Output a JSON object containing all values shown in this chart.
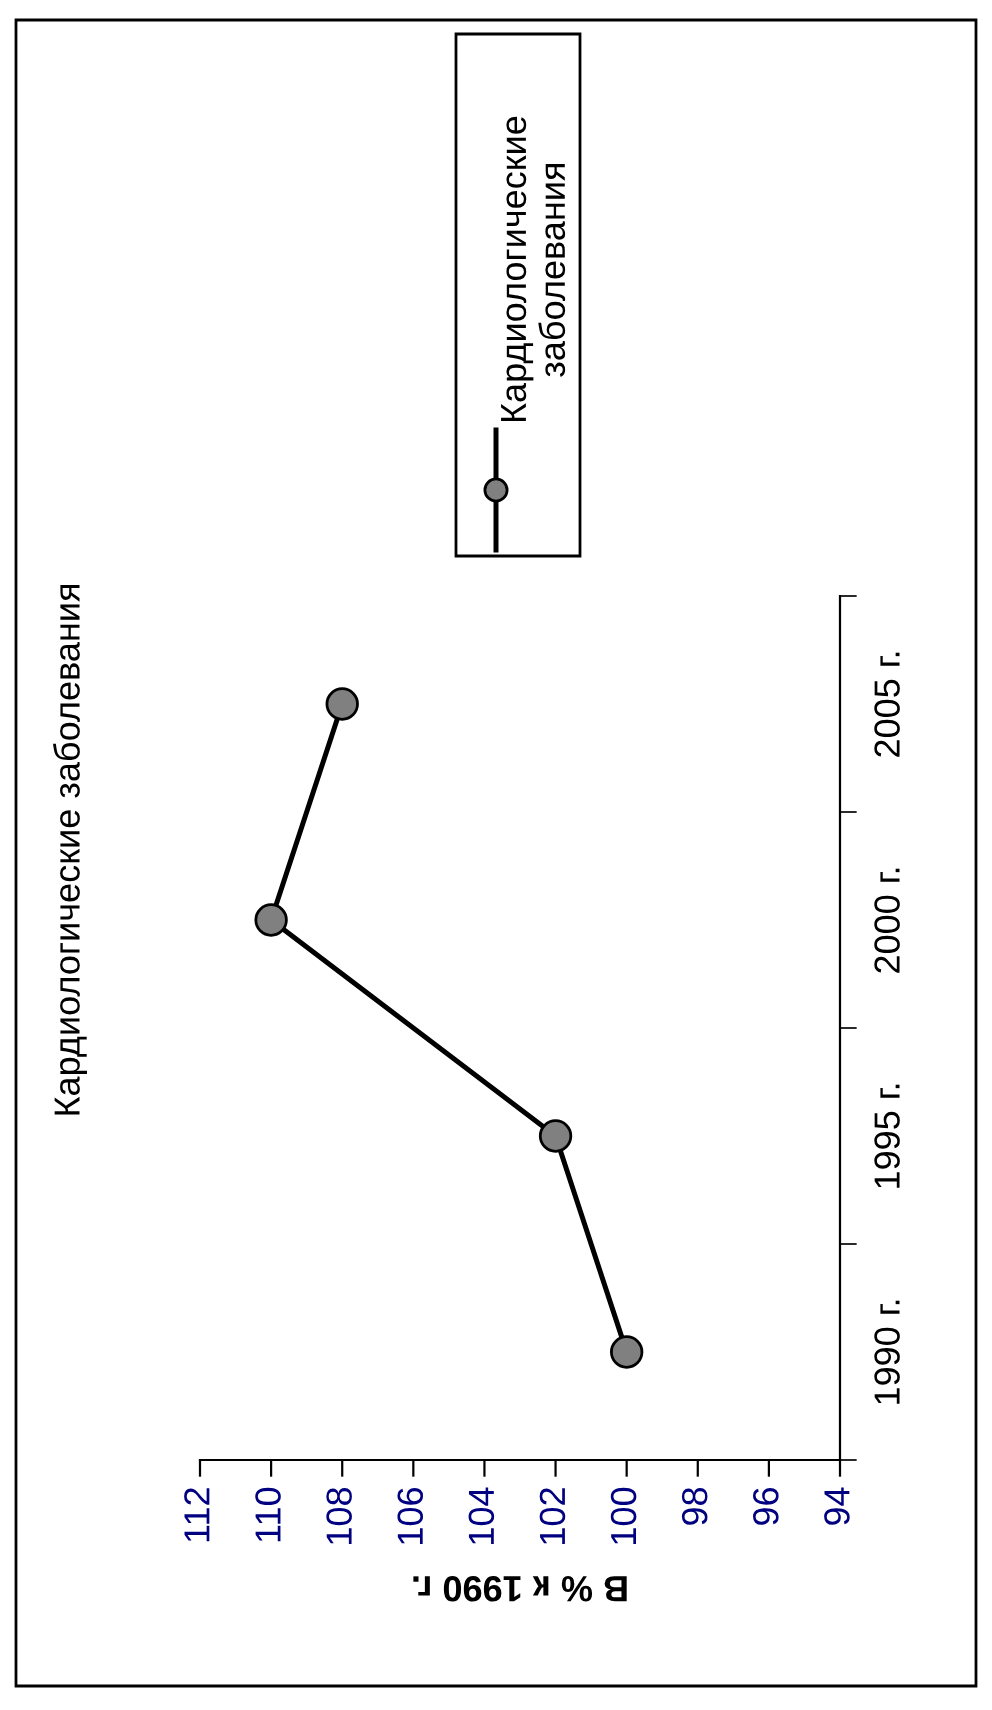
{
  "chart_data": {
    "type": "line",
    "orientation": "horizontal",
    "title": "Кардиологические заболевания",
    "xlabel": "В % к 1990 г.",
    "categories": [
      "2005 г.",
      "2000 г.",
      "1995 г.",
      "1990 г."
    ],
    "series": [
      {
        "name": "Кардиологические заболевания",
        "color": "#000000",
        "values": [
          108,
          110,
          102,
          100
        ]
      }
    ],
    "xlim": [
      112,
      94
    ],
    "xticks": [
      112,
      110,
      108,
      106,
      104,
      102,
      100,
      98,
      96,
      94
    ],
    "marker": "circle",
    "line_style": "solid",
    "legend": "top",
    "grid": false
  }
}
